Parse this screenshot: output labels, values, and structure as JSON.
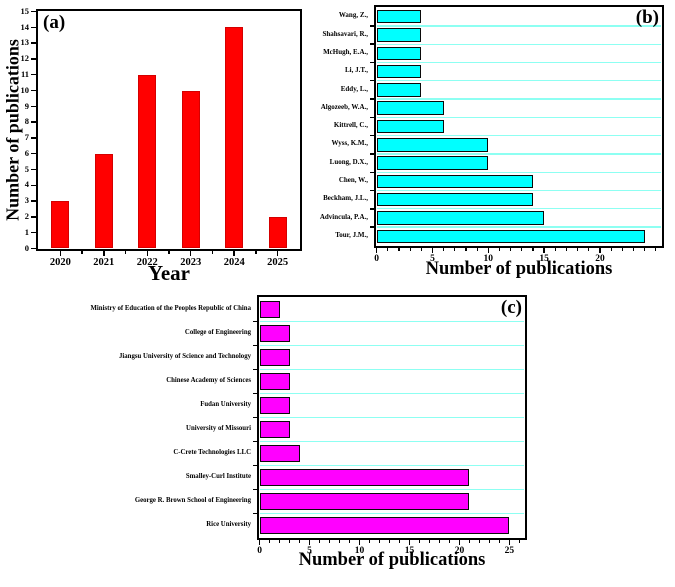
{
  "chart_data": [
    {
      "type": "bar",
      "panel_label": "(a)",
      "orientation": "vertical",
      "xlabel": "Year",
      "ylabel": "Number of publications",
      "categories": [
        "2020",
        "2021",
        "2022",
        "2023",
        "2024",
        "2025"
      ],
      "values": [
        3,
        6,
        11,
        10,
        14,
        2
      ],
      "ylim": [
        0,
        15
      ],
      "y_tick_step": 1,
      "grid": false,
      "bar_color": "#ff0000",
      "bar_border_color": "#d40000"
    },
    {
      "type": "bar",
      "panel_label": "(b)",
      "orientation": "horizontal",
      "xlabel": "Number of publications",
      "ylabel": "",
      "categories": [
        "Wang, Z.,",
        "Shahsavari, R.,",
        "McHugh, E.A.,",
        "Li, J.T.,",
        "Eddy, L.,",
        "Algozeeb, W.A.,",
        "Kittrell, C.,",
        "Wyss, K.M.,",
        "Luong, D.X.,",
        "Chen, W.,",
        "Beckham, J.L.,",
        "Advincula, P.A.,",
        "Tour, J.M.,"
      ],
      "values": [
        4,
        4,
        4,
        4,
        4,
        6,
        6,
        10,
        10,
        14,
        14,
        15,
        24
      ],
      "xlim": [
        0,
        25.5
      ],
      "x_major_ticks": [
        0,
        5,
        10,
        15,
        20
      ],
      "x_minor_tick_step": 1,
      "grid": true,
      "gridline_color": "#8dfff2",
      "bar_color": "#00ffff",
      "bar_border_color": "#0a0a0a"
    },
    {
      "type": "bar",
      "panel_label": "(c)",
      "orientation": "horizontal",
      "xlabel": "Number of publications",
      "ylabel": "",
      "categories": [
        "Ministry of Education of the Peoples Republic of China",
        "College of Engineering",
        "Jiangsu University of Science and Technology",
        "Chinese Academy of Sciences",
        "Fudan University",
        "University of Missouri",
        "C-Crete Technologies LLC",
        "Smalley-Curl Institute",
        "George R. Brown School of Engineering",
        "Rice University"
      ],
      "values": [
        2,
        3,
        3,
        3,
        3,
        3,
        4,
        21,
        21,
        25
      ],
      "xlim": [
        0,
        26.5
      ],
      "x_major_ticks": [
        0,
        5,
        10,
        15,
        20,
        25
      ],
      "x_minor_tick_step": 1,
      "grid": true,
      "gridline_color": "#8dfff2",
      "bar_color": "#ff00ff",
      "bar_border_color": "#0a0a0a"
    }
  ]
}
